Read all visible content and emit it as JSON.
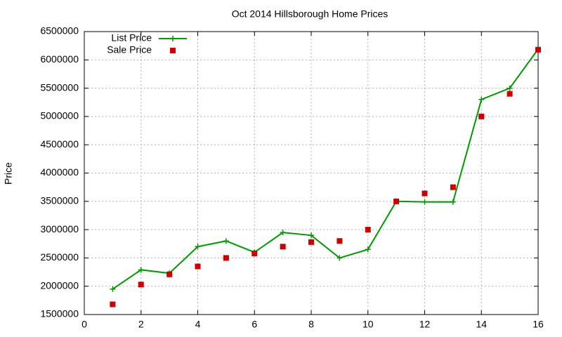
{
  "chart_data": {
    "type": "line",
    "title": "Oct 2014 Hillsborough Home Prices",
    "y_label": "Price",
    "x": [
      1,
      2,
      3,
      4,
      5,
      6,
      7,
      8,
      9,
      10,
      11,
      12,
      13,
      14,
      15,
      16
    ],
    "series": [
      {
        "name": "List Price",
        "color": "#009900",
        "style": "line",
        "values": [
          1950000,
          2290000,
          2230000,
          2700000,
          2800000,
          2600000,
          2950000,
          2900000,
          2500000,
          2650000,
          3500000,
          3490000,
          3490000,
          5300000,
          5500000,
          6190000
        ]
      },
      {
        "name": "Sale Price",
        "color": "#cc0000",
        "style": "points",
        "values": [
          1680000,
          2030000,
          2210000,
          2350000,
          2500000,
          2580000,
          2700000,
          2780000,
          2800000,
          3000000,
          3500000,
          3640000,
          3750000,
          5000000,
          5400000,
          6180000
        ]
      }
    ],
    "xlim": [
      0,
      16
    ],
    "xticks": [
      0,
      2,
      4,
      6,
      8,
      10,
      12,
      14,
      16
    ],
    "ylim": [
      1500000,
      6500000
    ],
    "yticks": [
      1500000,
      2000000,
      2500000,
      3000000,
      3500000,
      4000000,
      4500000,
      5000000,
      5500000,
      6000000,
      6500000
    ],
    "grid": true,
    "legend": "top-left"
  }
}
